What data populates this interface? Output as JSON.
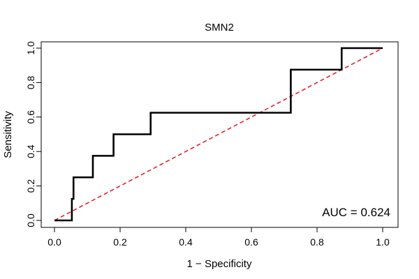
{
  "chart_data": {
    "type": "line",
    "title": "SMN2",
    "xlabel": "1 − Specificity",
    "ylabel": "Sensitivity",
    "xlim": [
      0,
      1
    ],
    "ylim": [
      0,
      1
    ],
    "x_ticks": [
      {
        "value": 0.0,
        "label": "0.0"
      },
      {
        "value": 0.2,
        "label": "0.2"
      },
      {
        "value": 0.4,
        "label": "0.4"
      },
      {
        "value": 0.6,
        "label": "0.6"
      },
      {
        "value": 0.8,
        "label": "0.8"
      },
      {
        "value": 1.0,
        "label": "1.0"
      }
    ],
    "y_ticks": [
      {
        "value": 0.0,
        "label": "0.0"
      },
      {
        "value": 0.2,
        "label": "0.2"
      },
      {
        "value": 0.4,
        "label": "0.4"
      },
      {
        "value": 0.6,
        "label": "0.6"
      },
      {
        "value": 0.8,
        "label": "0.8"
      },
      {
        "value": 1.0,
        "label": "1.0"
      }
    ],
    "grid": false,
    "series": [
      {
        "name": "ROC",
        "color": "#000000",
        "points": [
          [
            0.0,
            0.0
          ],
          [
            0.053,
            0.0
          ],
          [
            0.053,
            0.125
          ],
          [
            0.058,
            0.125
          ],
          [
            0.058,
            0.25
          ],
          [
            0.117,
            0.25
          ],
          [
            0.117,
            0.375
          ],
          [
            0.18,
            0.375
          ],
          [
            0.18,
            0.5
          ],
          [
            0.293,
            0.5
          ],
          [
            0.293,
            0.625
          ],
          [
            0.72,
            0.625
          ],
          [
            0.72,
            0.875
          ],
          [
            0.875,
            0.875
          ],
          [
            0.875,
            1.0
          ],
          [
            1.0,
            1.0
          ]
        ]
      },
      {
        "name": "reference",
        "color": "#e8212b",
        "dashed": true,
        "points": [
          [
            0.0,
            0.0
          ],
          [
            1.0,
            1.0
          ]
        ]
      }
    ],
    "annotations": [
      {
        "text": "AUC = 0.624",
        "position": "bottom-right"
      }
    ]
  }
}
